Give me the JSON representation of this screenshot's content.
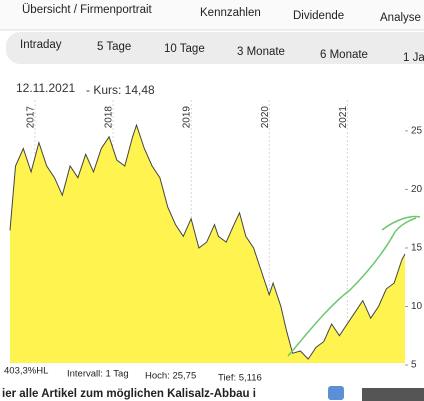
{
  "tabs": [
    "Übersicht / Firmenportrait",
    "Kennzahlen",
    "Dividende",
    "Analyse"
  ],
  "periods": [
    "Intraday",
    "5 Tage",
    "10 Tage",
    "3 Monate",
    "6 Monate",
    "1 Ja"
  ],
  "chart_data": {
    "type": "area",
    "title": "12.11.2021",
    "subtitle": "- Kurs: 14,48",
    "x": [
      2016.68,
      2016.75,
      2016.85,
      2016.95,
      2017.05,
      2017.15,
      2017.25,
      2017.35,
      2017.45,
      2017.55,
      2017.65,
      2017.75,
      2017.85,
      2017.95,
      2018.05,
      2018.15,
      2018.25,
      2018.3,
      2018.4,
      2018.5,
      2018.6,
      2018.7,
      2018.8,
      2018.9,
      2019.0,
      2019.1,
      2019.2,
      2019.3,
      2019.35,
      2019.45,
      2019.55,
      2019.62,
      2019.7,
      2019.8,
      2019.9,
      2020.0,
      2020.05,
      2020.15,
      2020.22,
      2020.3,
      2020.4,
      2020.5,
      2020.6,
      2020.7,
      2020.8,
      2020.9,
      2021.0,
      2021.1,
      2021.2,
      2021.3,
      2021.4,
      2021.5,
      2021.6,
      2021.7,
      2021.74
    ],
    "values": [
      16.5,
      22,
      23.5,
      21.5,
      24,
      22,
      21,
      19.5,
      22,
      21,
      23,
      21.5,
      23.5,
      24.5,
      22.5,
      22,
      24.5,
      25.5,
      23.5,
      22,
      21,
      18.5,
      17,
      16,
      17.5,
      15,
      15.5,
      17,
      16,
      15.5,
      17,
      18,
      16,
      15,
      13,
      11,
      12,
      10,
      8,
      6,
      6.2,
      5.5,
      6.5,
      7,
      8.5,
      7.5,
      8.5,
      9.5,
      10.5,
      9,
      10,
      11.5,
      12,
      14,
      14.48
    ],
    "color": "#fff44f",
    "line_color": "#444444",
    "xlim": [
      2016.68,
      2021.74
    ],
    "xticks": [
      2017,
      2018,
      2019,
      2020,
      2021
    ],
    "ylim": [
      5,
      27.3
    ],
    "yticks": [
      5,
      10,
      15,
      20,
      25
    ]
  },
  "footer": {
    "performance": "403,3%HL",
    "interval": "Intervall: 1 Tag",
    "high": "Hoch:  25,75",
    "low": "Tief:  5,116"
  },
  "article": "ier alle Artikel zum möglichen Kalisalz-Abbau i"
}
